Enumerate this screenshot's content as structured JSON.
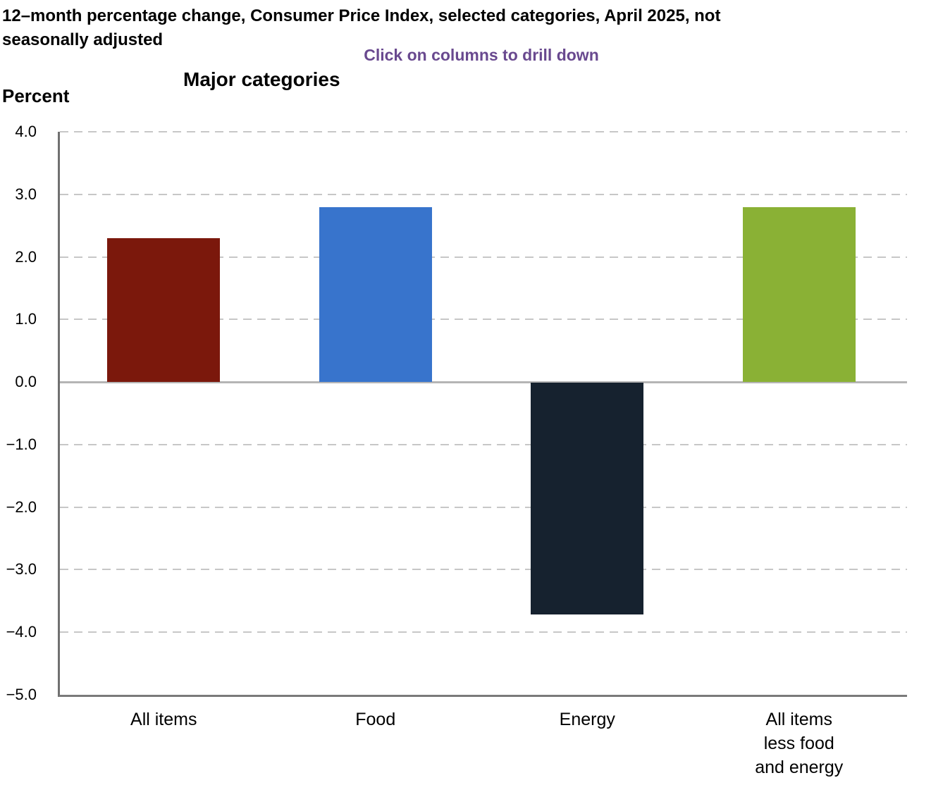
{
  "header": {
    "title": "12–month percentage change, Consumer Price Index, selected categories, April 2025, not\nseasonally adjusted",
    "subtitle": "Click on columns to drill down",
    "subtitle_color": "#69498F",
    "section_title": "Major categories",
    "y_axis_title": "Percent"
  },
  "chart_data": {
    "type": "bar",
    "title": "Major categories",
    "ylabel": "Percent",
    "categories": [
      "All items",
      "Food",
      "Energy",
      "All items less food and energy"
    ],
    "category_lines": [
      [
        "All items"
      ],
      [
        "Food"
      ],
      [
        "Energy"
      ],
      [
        "All items",
        "less food",
        "and energy"
      ]
    ],
    "values": [
      2.3,
      2.8,
      -3.7,
      2.8
    ],
    "bar_colors": [
      "#7B180C",
      "#3874CC",
      "#16222F",
      "#8AB135"
    ],
    "ylim": [
      -5.0,
      4.0
    ],
    "ytick_step": 1.0,
    "ytick_labels": [
      "4.0",
      "3.0",
      "2.0",
      "1.0",
      "0.0",
      "−1.0",
      "−2.0",
      "−3.0",
      "−4.0",
      "−5.0"
    ],
    "grid": "horizontal-dashed",
    "legend": "none",
    "note": "Click on columns to drill down"
  },
  "axis_colors": {
    "gridline": "#c7c7c7",
    "zero_line": "#b5b5b5",
    "y_axis_line": "#707070",
    "x_axis_line": "#7a7a7a"
  }
}
